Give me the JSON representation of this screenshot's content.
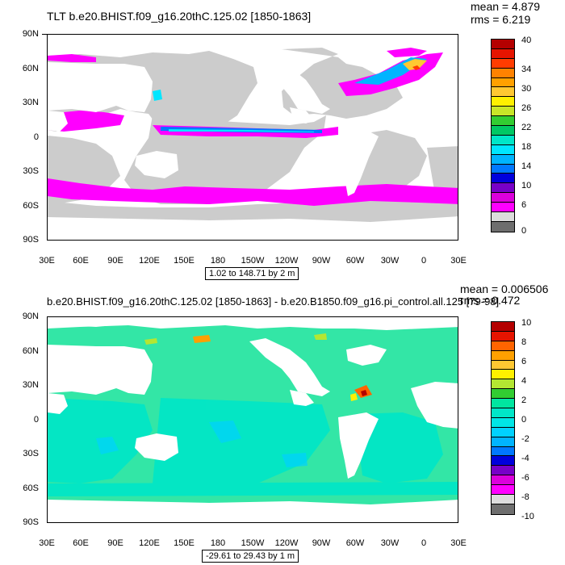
{
  "top": {
    "title": "TLT b.e20.BHIST.f09_g16.20thC.125.02 [1850-1863]",
    "mean": "mean = 4.879",
    "rms": "rms = 6.219",
    "range": "1.02 to 148.71 by 2 m",
    "lat_labels": [
      "90N",
      "60N",
      "30N",
      "0",
      "30S",
      "60S",
      "90S"
    ],
    "lon_labels": [
      "30E",
      "60E",
      "90E",
      "120E",
      "150E",
      "180",
      "150W",
      "120W",
      "90W",
      "60W",
      "30W",
      "0",
      "30E"
    ],
    "colorbar_labels": [
      "40",
      "34",
      "30",
      "26",
      "22",
      "18",
      "14",
      "10",
      "6",
      "0"
    ],
    "colorbar_colors": [
      "#b40000",
      "#e61400",
      "#ff3c00",
      "#ff8200",
      "#ffa000",
      "#ffc832",
      "#fff000",
      "#c8e628",
      "#32cd32",
      "#00c864",
      "#00e6c8",
      "#00e6ff",
      "#00b4ff",
      "#0078ff",
      "#0000dc",
      "#7800c8",
      "#dc00dc",
      "#ff00ff",
      "#dcdcdc",
      "#6e6e6e"
    ]
  },
  "bottom": {
    "title": "b.e20.BHIST.f09_g16.20thC.125.02 [1850-1863] - b.e20.B1850.f09_g16.pi_control.all.125 [79-98]",
    "mean": "mean = 0.006506",
    "rms": "rms = 0.472",
    "range": "-29.61 to 29.43 by 1 m",
    "lat_labels": [
      "90N",
      "60N",
      "30N",
      "0",
      "30S",
      "60S",
      "90S"
    ],
    "lon_labels": [
      "30E",
      "60E",
      "90E",
      "120E",
      "150E",
      "180",
      "150W",
      "120W",
      "90W",
      "60W",
      "30W",
      "0",
      "30E"
    ],
    "colorbar_labels": [
      "10",
      "8",
      "6",
      "4",
      "2",
      "0",
      "-2",
      "-4",
      "-6",
      "-8",
      "-10"
    ],
    "colorbar_colors": [
      "#b40000",
      "#e61400",
      "#ff6400",
      "#ffa000",
      "#ffc832",
      "#fff000",
      "#b4e632",
      "#32cd32",
      "#00e6a0",
      "#00e6c8",
      "#00e6e6",
      "#00d2ff",
      "#00b4ff",
      "#0078ff",
      "#0000dc",
      "#7800c8",
      "#dc00dc",
      "#ff00ff",
      "#dcdcdc",
      "#6e6e6e"
    ]
  }
}
